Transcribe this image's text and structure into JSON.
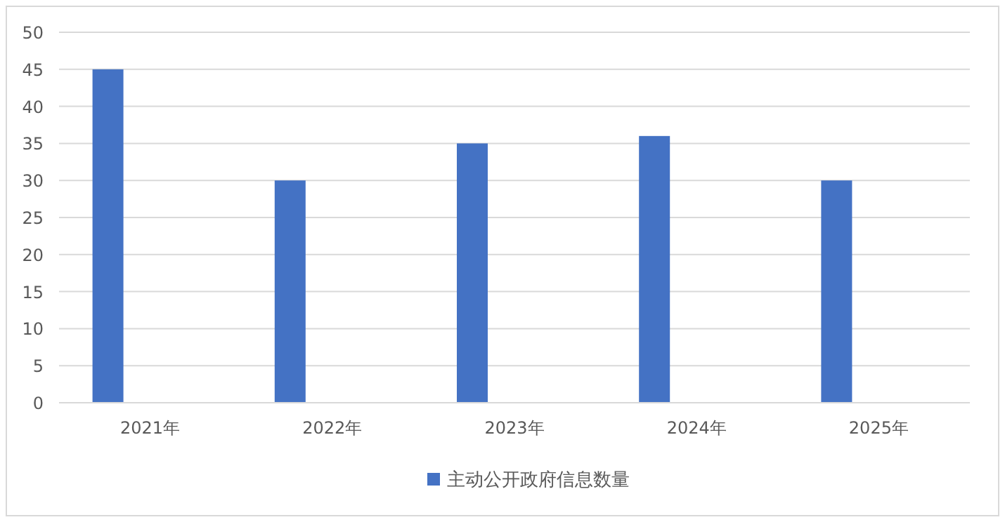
{
  "chart_data": {
    "type": "bar",
    "categories": [
      "2021年",
      "2022年",
      "2023年",
      "2024年",
      "2025年"
    ],
    "series": [
      {
        "name": "主动公开政府信息数量",
        "color": "#4472c4",
        "values": [
          45,
          30,
          35,
          36,
          30
        ]
      }
    ],
    "ylim": [
      0,
      50
    ],
    "yticks": [
      0,
      5,
      10,
      15,
      20,
      25,
      30,
      35,
      40,
      45,
      50
    ],
    "grid": "y",
    "legend": "bottom"
  }
}
